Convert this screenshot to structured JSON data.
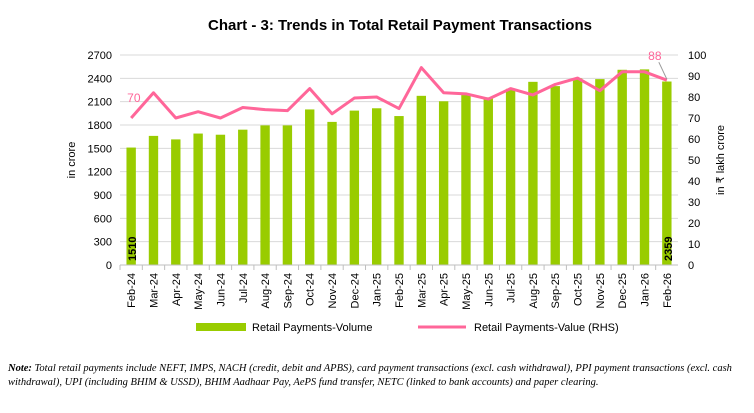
{
  "chart_data": {
    "type": "bar+line",
    "title": "Chart - 3: Trends in Total Retail Payment Transactions",
    "ylabel": "in crore",
    "y2label": "in ₹ lakh crore",
    "ylim": [
      0,
      2700
    ],
    "yticks": [
      0,
      300,
      600,
      900,
      1200,
      1500,
      1800,
      2100,
      2400,
      2700
    ],
    "y2lim": [
      0,
      100
    ],
    "y2ticks": [
      0,
      10,
      20,
      30,
      40,
      50,
      60,
      70,
      80,
      90,
      100
    ],
    "grid": true,
    "legend_placement": "bottom",
    "categories": [
      "Feb-24",
      "Mar-24",
      "Apr-24",
      "May-24",
      "Jun-24",
      "Jul-24",
      "Aug-24",
      "Sep-24",
      "Oct-24",
      "Nov-24",
      "Dec-24",
      "Jan-25",
      "Feb-25",
      "Mar-25",
      "Apr-25",
      "May-25",
      "Jun-25",
      "Jul-25",
      "Aug-25",
      "Sep-25",
      "Oct-25",
      "Nov-25",
      "Dec-25",
      "Jan-26",
      "Feb-26"
    ],
    "series": [
      {
        "name": "Retail Payments-Volume",
        "type": "bar",
        "axis": "left",
        "color": "#99cc00",
        "values": [
          1510,
          1660,
          1615,
          1690,
          1675,
          1740,
          1795,
          1795,
          2000,
          1840,
          1985,
          2015,
          1915,
          2175,
          2105,
          2185,
          2155,
          2265,
          2355,
          2300,
          2400,
          2390,
          2510,
          2515,
          2359
        ],
        "data_labels": {
          "0": "1510",
          "24": "2359"
        }
      },
      {
        "name": "Retail Payments-Value (RHS)",
        "type": "line",
        "axis": "right",
        "color": "#ff6699",
        "values": [
          70,
          82,
          70,
          73,
          70,
          75,
          74,
          73.5,
          84,
          72,
          79.5,
          80,
          74.5,
          94,
          82,
          81.5,
          79,
          84,
          81,
          86,
          89,
          83,
          92,
          92,
          88
        ],
        "data_labels": {
          "0": "70",
          "24": "88"
        }
      }
    ]
  },
  "note": {
    "label": "Note:",
    "text": " Total retail payments include NEFT, IMPS, NACH (credit, debit and APBS), card payment transactions (excl. cash withdrawal), PPI payment transactions (excl. cash withdrawal), UPI (including BHIM & USSD), BHIM Aadhaar Pay, AePS fund transfer, NETC (linked to bank accounts) and paper clearing."
  }
}
